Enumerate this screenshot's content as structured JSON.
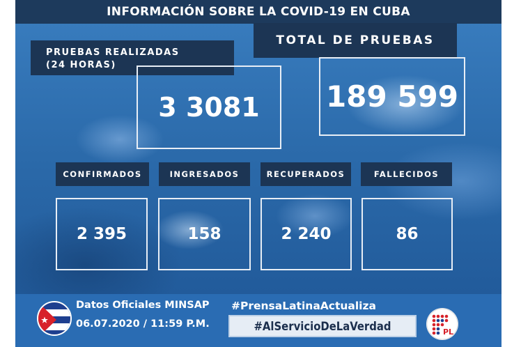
{
  "header": {
    "title": "INFORMACIÓN SOBRE LA COVID-19 EN CUBA"
  },
  "tests_24h": {
    "label_line1": "PRUEBAS REALIZADAS",
    "label_line2": "(24 HORAS)",
    "value": "3 3081"
  },
  "tests_total": {
    "label": "TOTAL DE PRUEBAS",
    "value": "189 599"
  },
  "stats": [
    {
      "label": "CONFIRMADOS",
      "value": "2 395"
    },
    {
      "label": "INGRESADOS",
      "value": "158"
    },
    {
      "label": "RECUPERADOS",
      "value": "2 240"
    },
    {
      "label": "FALLECIDOS",
      "value": "86"
    }
  ],
  "footer": {
    "source": "Datos Oficiales MINSAP",
    "datetime": "06.07.2020 / 11:59 P.M.",
    "hashtag1": "#PrensaLatinaActualiza",
    "hashtag2": "#AlServicioDeLaVerdad",
    "logo_text": "PL"
  },
  "colors": {
    "dark_navy": "#1c3554",
    "blue_bg": "#2e6aa8",
    "footer_blue": "#2a6cb3",
    "logo_red": "#d7222a"
  }
}
